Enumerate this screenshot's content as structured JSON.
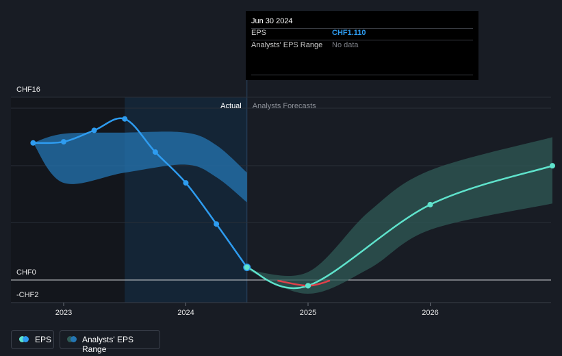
{
  "tooltip": {
    "date": "Jun 30 2024",
    "eps_label": "EPS",
    "eps_value": "CHF1.110",
    "range_label": "Analysts' EPS Range",
    "range_value": "No data"
  },
  "regions": {
    "actual": "Actual",
    "forecast": "Analysts Forecasts"
  },
  "legend": {
    "eps": "EPS",
    "range": "Analysts' EPS Range"
  },
  "colors": {
    "background": "#181c24",
    "eps_actual": "#2e9cf0",
    "eps_forecast": "#5fe3cc",
    "eps_negative": "#e0404a",
    "range_actual": "#2476b3",
    "range_forecast": "#2f5a55",
    "tooltip_value": "#2e9cf0",
    "tooltip_nodata": "#7c7f86"
  },
  "chart_data": {
    "type": "line",
    "y_ticks": [
      "CHF16",
      "CHF0",
      "-CHF2"
    ],
    "y_tick_values": [
      16,
      0,
      -2
    ],
    "x_ticks": [
      "2023",
      "2024",
      "2025",
      "2026"
    ],
    "x_tick_values": [
      2023.0,
      2024.0,
      2025.0,
      2026.0
    ],
    "xlim": [
      2022.58,
      2027.0
    ],
    "ylim": [
      -2,
      16
    ],
    "highlight_span": [
      2023.5,
      2024.5
    ],
    "actual_forecast_split": 2024.5,
    "series": [
      {
        "name": "EPS",
        "segment": "actual",
        "x": [
          2022.75,
          2023.0,
          2023.25,
          2023.5,
          2023.75,
          2024.0,
          2024.25,
          2024.5
        ],
        "y": [
          12.0,
          12.1,
          13.1,
          14.1,
          11.2,
          8.5,
          4.9,
          1.11
        ]
      },
      {
        "name": "EPS",
        "segment": "forecast",
        "x": [
          2024.5,
          2025.0,
          2026.0,
          2027.0
        ],
        "y": [
          1.11,
          -0.5,
          6.6,
          10.0
        ]
      },
      {
        "name": "Analysts' EPS Range",
        "segment": "actual",
        "x": [
          2022.75,
          2023.0,
          2023.5,
          2024.0,
          2024.25,
          2024.5
        ],
        "upper": [
          12.0,
          12.8,
          12.9,
          12.9,
          11.8,
          9.4
        ],
        "lower": [
          12.0,
          8.5,
          9.4,
          10.1,
          9.0,
          6.8
        ]
      },
      {
        "name": "Analysts' EPS Range",
        "segment": "forecast",
        "x": [
          2024.5,
          2025.0,
          2025.5,
          2026.0,
          2027.0
        ],
        "upper": [
          0.9,
          0.7,
          6.0,
          9.6,
          12.5
        ],
        "lower": [
          0.9,
          -1.2,
          1.0,
          4.4,
          6.7
        ]
      }
    ]
  }
}
